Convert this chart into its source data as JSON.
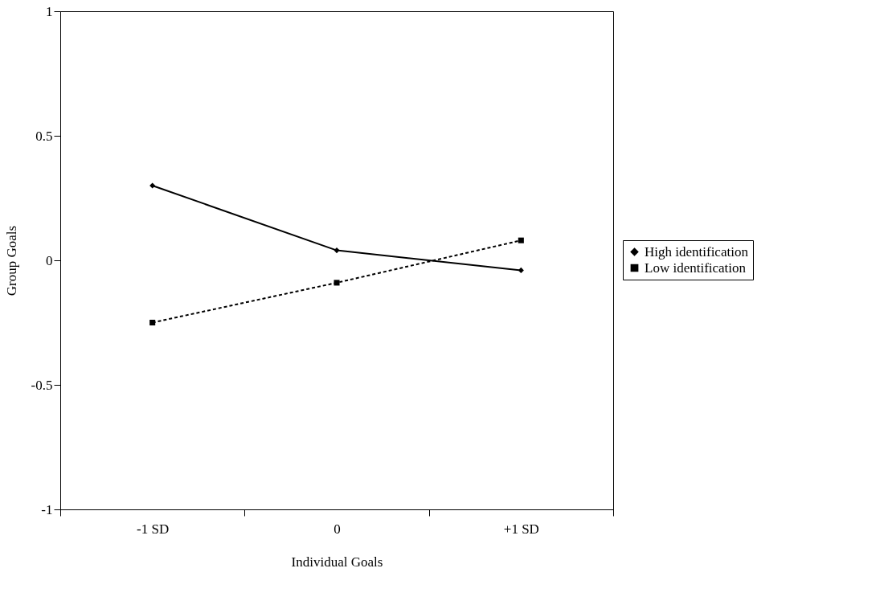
{
  "chart_data": {
    "type": "line",
    "xlabel": "Individual Goals",
    "ylabel": "Group Goals",
    "categories": [
      "-1 SD",
      "0",
      "+1 SD"
    ],
    "ylim": [
      -1,
      1
    ],
    "yticks": [
      -1,
      -0.5,
      0,
      0.5,
      1
    ],
    "grid": false,
    "legend": "right",
    "series": [
      {
        "name": "High identification",
        "color": "#000000",
        "marker": "diamond",
        "line_style": "solid",
        "values": [
          0.3,
          0.04,
          -0.04
        ]
      },
      {
        "name": "Low identification",
        "color": "#000000",
        "marker": "square",
        "line_style": "dashed",
        "values": [
          -0.25,
          -0.09,
          0.08
        ]
      }
    ]
  }
}
